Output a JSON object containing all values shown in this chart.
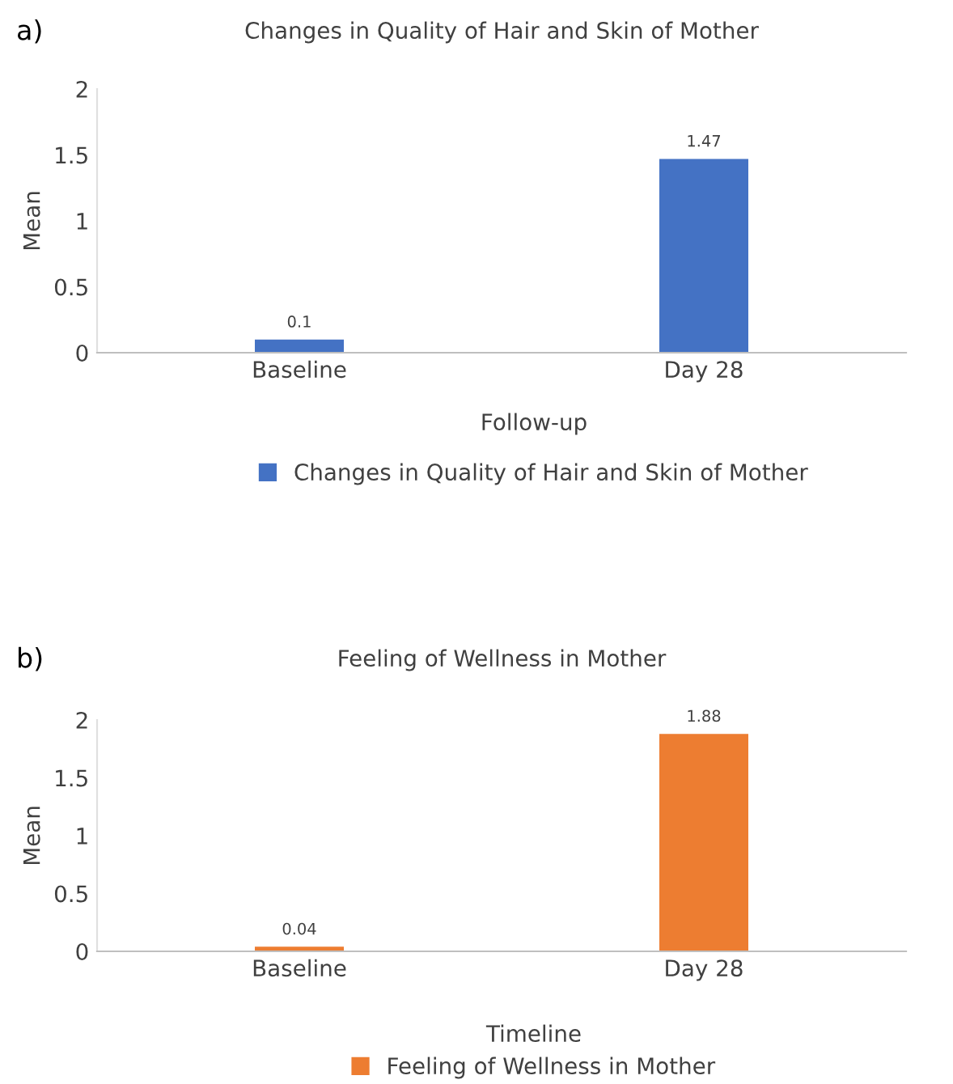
{
  "chart_data": [
    {
      "type": "bar",
      "title": "Changes in Quality of Hair and Skin of Mother",
      "xlabel": "Follow-up",
      "ylabel": "Mean",
      "annotations": [
        "a)"
      ],
      "categories": [
        "Baseline",
        "Day 28"
      ],
      "series": [
        {
          "name": "Changes in Quality of Hair and Skin of Mother",
          "color": "#4472c4",
          "values": [
            0.1,
            1.47
          ]
        }
      ],
      "ylim": [
        0,
        2
      ],
      "yticks": [
        0,
        0.5,
        1,
        1.5,
        2
      ],
      "data_labels": true,
      "legend": "bottom",
      "grid": false
    },
    {
      "type": "bar",
      "title": "Feeling of Wellness in Mother",
      "xlabel": "Timeline",
      "ylabel": "Mean",
      "annotations": [
        "b)"
      ],
      "categories": [
        "Baseline",
        "Day 28"
      ],
      "series": [
        {
          "name": "Feeling of Wellness in Mother",
          "color": "#ed7d31",
          "values": [
            0.04,
            1.88
          ]
        }
      ],
      "ylim": [
        0,
        2
      ],
      "yticks": [
        0,
        0.5,
        1,
        1.5,
        2
      ],
      "data_labels": true,
      "legend": "bottom",
      "grid": false
    }
  ]
}
